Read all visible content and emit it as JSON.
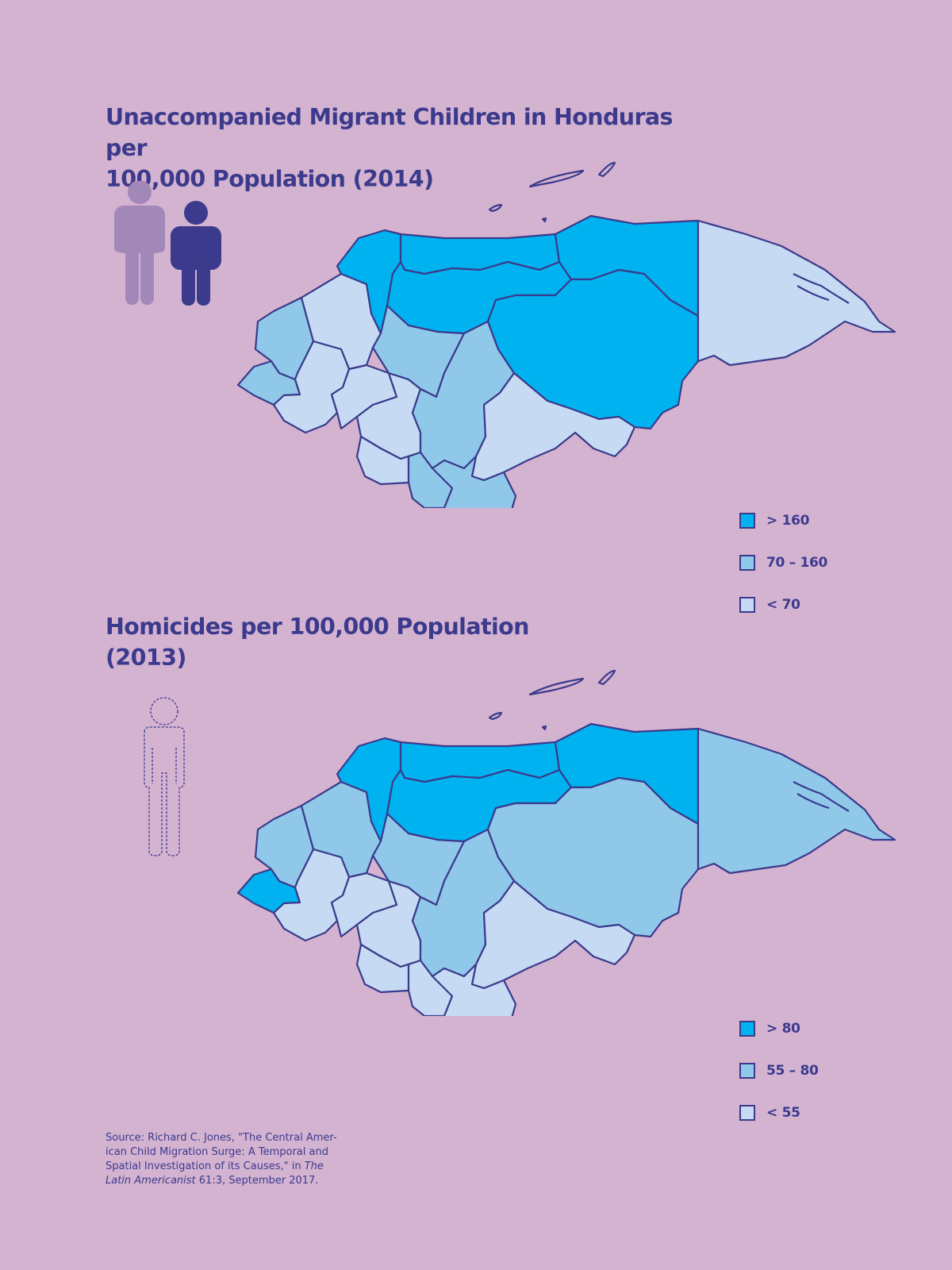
{
  "colors": {
    "background": "#d4b3d1",
    "text": "#3b3a8c",
    "high": "#00b3f0",
    "mid": "#90c8ea",
    "low": "#c6dbf3",
    "figure_light": "#a287b9",
    "figure_dark": "#3b3a8c"
  },
  "maps": [
    {
      "title": "Unaccompanied Migrant Children in Honduras per\n100,000 Population (2014)",
      "icon": "two-person-figures-icon",
      "legend": [
        {
          "label": "> 160",
          "class": "high"
        },
        {
          "label": "70 – 160",
          "class": "mid"
        },
        {
          "label": "< 70",
          "class": "low"
        }
      ],
      "regions": {
        "west_coast": "mid",
        "ocotepeque": "mid",
        "copan_northwest": "low",
        "cortes": "high",
        "yoro": "high",
        "atlantida": "high",
        "colon": "high",
        "olancho": "high",
        "gracias_a_dios": "low",
        "santa_barbara": "low",
        "lempira": "low",
        "intibuca": "low",
        "la_paz": "low",
        "comayagua": "mid",
        "francisco_morazan": "mid",
        "el_paraiso": "low",
        "valle": "mid",
        "choluteca": "mid"
      }
    },
    {
      "title": "Homicides per 100,000 Population\n(2013)",
      "icon": "dashed-person-outline-icon",
      "legend": [
        {
          "label": "> 80",
          "class": "high"
        },
        {
          "label": "55 – 80",
          "class": "mid"
        },
        {
          "label": "< 55",
          "class": "low"
        }
      ],
      "regions": {
        "west_coast": "mid",
        "ocotepeque": "high",
        "copan_northwest": "mid",
        "cortes": "high",
        "yoro": "high",
        "atlantida": "high",
        "colon": "high",
        "olancho": "mid",
        "gracias_a_dios": "mid",
        "santa_barbara": "low",
        "lempira": "low",
        "intibuca": "low",
        "la_paz": "low",
        "comayagua": "mid",
        "francisco_morazan": "mid",
        "el_paraiso": "low",
        "valle": "low",
        "choluteca": "low"
      }
    }
  ],
  "source": {
    "prefix": "Source: Richard C. Jones, \"The Central Amer-ican Child Migration Surge: A Temporal and Spatial Investigation of its Causes,\" in ",
    "journal": "The Latin Americanist",
    "suffix": " 61:3, September 2017."
  }
}
